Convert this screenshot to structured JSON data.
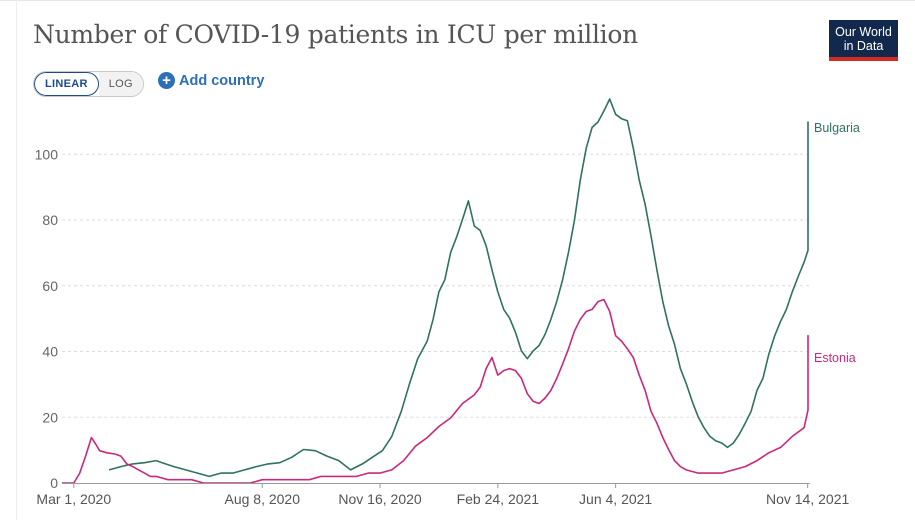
{
  "header": {
    "title": "Number of COVID-19 patients in ICU per million",
    "logo_line1": "Our World",
    "logo_line2": "in Data"
  },
  "controls": {
    "linear_label": "LINEAR",
    "log_label": "LOG",
    "add_country_label": "Add country"
  },
  "colors": {
    "Bulgaria": "#2e7262",
    "Estonia": "#c9287c",
    "axis": "#999999"
  },
  "chart_data": {
    "type": "line",
    "title": "Number of COVID-19 patients in ICU per million",
    "x_axis": {
      "tick_labels": [
        "Mar 1, 2020",
        "Aug 8, 2020",
        "Nov 16, 2020",
        "Feb 24, 2021",
        "Jun 4, 2021",
        "Nov 14, 2021"
      ],
      "tick_days": [
        0,
        160,
        260,
        360,
        460,
        623
      ],
      "range_days": [
        -10,
        625
      ]
    },
    "y_axis": {
      "ticks": [
        0,
        20,
        40,
        60,
        80,
        100
      ],
      "range": [
        0,
        115
      ]
    },
    "grid": "horizontal dashed",
    "series": [
      {
        "name": "Bulgaria",
        "points": [
          [
            30,
            4
          ],
          [
            40,
            5
          ],
          [
            50,
            6
          ],
          [
            60,
            6
          ],
          [
            70,
            7
          ],
          [
            75,
            6
          ],
          [
            85,
            5
          ],
          [
            95,
            4
          ],
          [
            105,
            3
          ],
          [
            115,
            2
          ],
          [
            125,
            3
          ],
          [
            135,
            3
          ],
          [
            145,
            4
          ],
          [
            155,
            5
          ],
          [
            165,
            6
          ],
          [
            175,
            6
          ],
          [
            185,
            8
          ],
          [
            195,
            10
          ],
          [
            205,
            10
          ],
          [
            215,
            8
          ],
          [
            225,
            7
          ],
          [
            235,
            4
          ],
          [
            245,
            6
          ],
          [
            255,
            8
          ],
          [
            262,
            10
          ],
          [
            270,
            14
          ],
          [
            278,
            22
          ],
          [
            285,
            30
          ],
          [
            292,
            38
          ],
          [
            300,
            43
          ],
          [
            305,
            50
          ],
          [
            310,
            58
          ],
          [
            315,
            62
          ],
          [
            320,
            70
          ],
          [
            325,
            75
          ],
          [
            330,
            80
          ],
          [
            335,
            86
          ],
          [
            340,
            78
          ],
          [
            345,
            77
          ],
          [
            350,
            72
          ],
          [
            355,
            65
          ],
          [
            360,
            58
          ],
          [
            365,
            53
          ],
          [
            370,
            50
          ],
          [
            375,
            46
          ],
          [
            380,
            40
          ],
          [
            385,
            38
          ],
          [
            390,
            40
          ],
          [
            395,
            42
          ],
          [
            400,
            45
          ],
          [
            405,
            50
          ],
          [
            410,
            55
          ],
          [
            415,
            62
          ],
          [
            420,
            70
          ],
          [
            425,
            80
          ],
          [
            430,
            92
          ],
          [
            435,
            102
          ],
          [
            440,
            108
          ],
          [
            445,
            110
          ],
          [
            450,
            113
          ],
          [
            455,
            117
          ],
          [
            460,
            112
          ],
          [
            465,
            111
          ],
          [
            470,
            110
          ],
          [
            475,
            102
          ],
          [
            480,
            92
          ],
          [
            485,
            85
          ],
          [
            490,
            75
          ],
          [
            495,
            65
          ],
          [
            500,
            55
          ],
          [
            505,
            48
          ],
          [
            510,
            42
          ],
          [
            515,
            35
          ],
          [
            520,
            30
          ],
          [
            525,
            25
          ],
          [
            530,
            20
          ],
          [
            535,
            17
          ],
          [
            540,
            14
          ],
          [
            545,
            13
          ],
          [
            550,
            12
          ],
          [
            555,
            11
          ],
          [
            560,
            12
          ],
          [
            565,
            15
          ],
          [
            570,
            18
          ],
          [
            575,
            22
          ],
          [
            580,
            28
          ],
          [
            585,
            32
          ],
          [
            590,
            39
          ],
          [
            595,
            45
          ],
          [
            600,
            49
          ],
          [
            605,
            53
          ],
          [
            610,
            58
          ],
          [
            615,
            63
          ],
          [
            620,
            67
          ],
          [
            625,
            71
          ],
          [
            630,
            80
          ],
          [
            635,
            90
          ],
          [
            640,
            97
          ],
          [
            645,
            103
          ],
          [
            650,
            108
          ],
          [
            652,
            110
          ],
          [
            655,
            108
          ]
        ]
      },
      {
        "name": "Estonia",
        "points": [
          [
            -10,
            0
          ],
          [
            0,
            0
          ],
          [
            5,
            3
          ],
          [
            10,
            8
          ],
          [
            15,
            14
          ],
          [
            18,
            12
          ],
          [
            22,
            10
          ],
          [
            28,
            9
          ],
          [
            35,
            9
          ],
          [
            40,
            8
          ],
          [
            45,
            6
          ],
          [
            50,
            5
          ],
          [
            55,
            4
          ],
          [
            60,
            3
          ],
          [
            65,
            2
          ],
          [
            70,
            2
          ],
          [
            80,
            1
          ],
          [
            90,
            1
          ],
          [
            100,
            1
          ],
          [
            110,
            0
          ],
          [
            120,
            0
          ],
          [
            130,
            0
          ],
          [
            140,
            0
          ],
          [
            150,
            0
          ],
          [
            160,
            1
          ],
          [
            170,
            1
          ],
          [
            180,
            1
          ],
          [
            190,
            1
          ],
          [
            200,
            1
          ],
          [
            210,
            2
          ],
          [
            220,
            2
          ],
          [
            230,
            2
          ],
          [
            240,
            2
          ],
          [
            250,
            3
          ],
          [
            260,
            3
          ],
          [
            270,
            4
          ],
          [
            280,
            7
          ],
          [
            290,
            11
          ],
          [
            300,
            14
          ],
          [
            310,
            17
          ],
          [
            320,
            20
          ],
          [
            330,
            24
          ],
          [
            340,
            27
          ],
          [
            345,
            29
          ],
          [
            350,
            35
          ],
          [
            355,
            38
          ],
          [
            360,
            33
          ],
          [
            365,
            34
          ],
          [
            370,
            35
          ],
          [
            375,
            34
          ],
          [
            380,
            32
          ],
          [
            385,
            27
          ],
          [
            390,
            25
          ],
          [
            395,
            24
          ],
          [
            400,
            26
          ],
          [
            405,
            28
          ],
          [
            410,
            32
          ],
          [
            415,
            36
          ],
          [
            420,
            41
          ],
          [
            425,
            46
          ],
          [
            430,
            50
          ],
          [
            435,
            52
          ],
          [
            440,
            53
          ],
          [
            445,
            55
          ],
          [
            450,
            56
          ],
          [
            455,
            52
          ],
          [
            460,
            45
          ],
          [
            465,
            43
          ],
          [
            470,
            41
          ],
          [
            475,
            38
          ],
          [
            480,
            33
          ],
          [
            485,
            28
          ],
          [
            490,
            22
          ],
          [
            495,
            18
          ],
          [
            500,
            14
          ],
          [
            505,
            10
          ],
          [
            510,
            7
          ],
          [
            515,
            5
          ],
          [
            520,
            4
          ],
          [
            530,
            3
          ],
          [
            540,
            3
          ],
          [
            550,
            3
          ],
          [
            560,
            4
          ],
          [
            570,
            5
          ],
          [
            580,
            7
          ],
          [
            590,
            9
          ],
          [
            600,
            11
          ],
          [
            610,
            14
          ],
          [
            620,
            17
          ],
          [
            630,
            22
          ],
          [
            640,
            28
          ],
          [
            645,
            33
          ],
          [
            650,
            38
          ],
          [
            655,
            42
          ],
          [
            660,
            45
          ],
          [
            665,
            41
          ],
          [
            670,
            39
          ],
          [
            673,
            38
          ]
        ]
      }
    ],
    "end_labels": [
      "Bulgaria",
      "Estonia"
    ]
  }
}
